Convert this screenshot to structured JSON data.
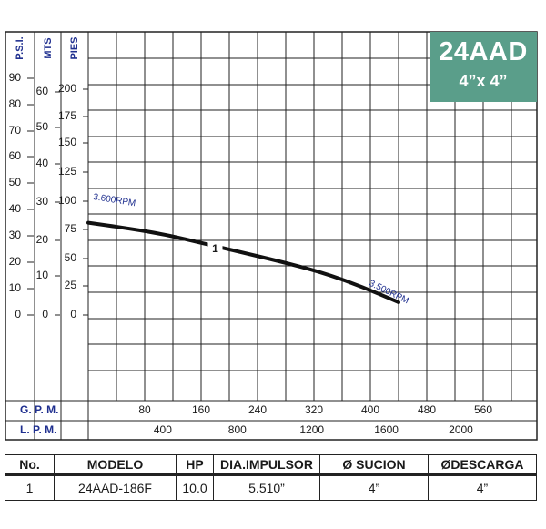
{
  "model": {
    "name": "24AAD",
    "size": "4”x 4”"
  },
  "chart_data": {
    "type": "line",
    "y_axes": [
      {
        "title": "P.S.I.",
        "ticks": [
          "90",
          "80",
          "70",
          "60",
          "50",
          "40",
          "30",
          "20",
          "10",
          "0"
        ]
      },
      {
        "title": "MTS",
        "ticks": [
          "60",
          "50",
          "40",
          "30",
          "20",
          "10",
          "0"
        ]
      },
      {
        "title": "PIES",
        "ticks": [
          "200",
          "175",
          "150",
          "125",
          "100",
          "75",
          "50",
          "25",
          "0"
        ]
      }
    ],
    "x_axes": [
      {
        "title": "G. P. M.",
        "ticks": [
          "80",
          "160",
          "240",
          "320",
          "400",
          "480",
          "560"
        ]
      },
      {
        "title": "L. P. M.",
        "ticks": [
          "400",
          "800",
          "1200",
          "1600",
          "2000"
        ]
      }
    ],
    "xlim_gpm": [
      0,
      630
    ],
    "ylim_pies": [
      0,
      225
    ],
    "grid": true,
    "series": [
      {
        "name": "1",
        "start_label": "3.600RPM",
        "end_label": "3.500RPM",
        "x_gpm": [
          0,
          55,
          110,
          165,
          215,
          270,
          330,
          385,
          440
        ],
        "y_pies": [
          101,
          95,
          88,
          78,
          69,
          59,
          47,
          32,
          14
        ]
      }
    ]
  },
  "table": {
    "headers": [
      "No.",
      "MODELO",
      "HP",
      "DIA.IMPULSOR",
      "Ø SUCION",
      "ØDESCARGA"
    ],
    "rows": [
      [
        "1",
        "24AAD-186F",
        "10.0",
        "5.510”",
        "4”",
        "4”"
      ]
    ]
  }
}
